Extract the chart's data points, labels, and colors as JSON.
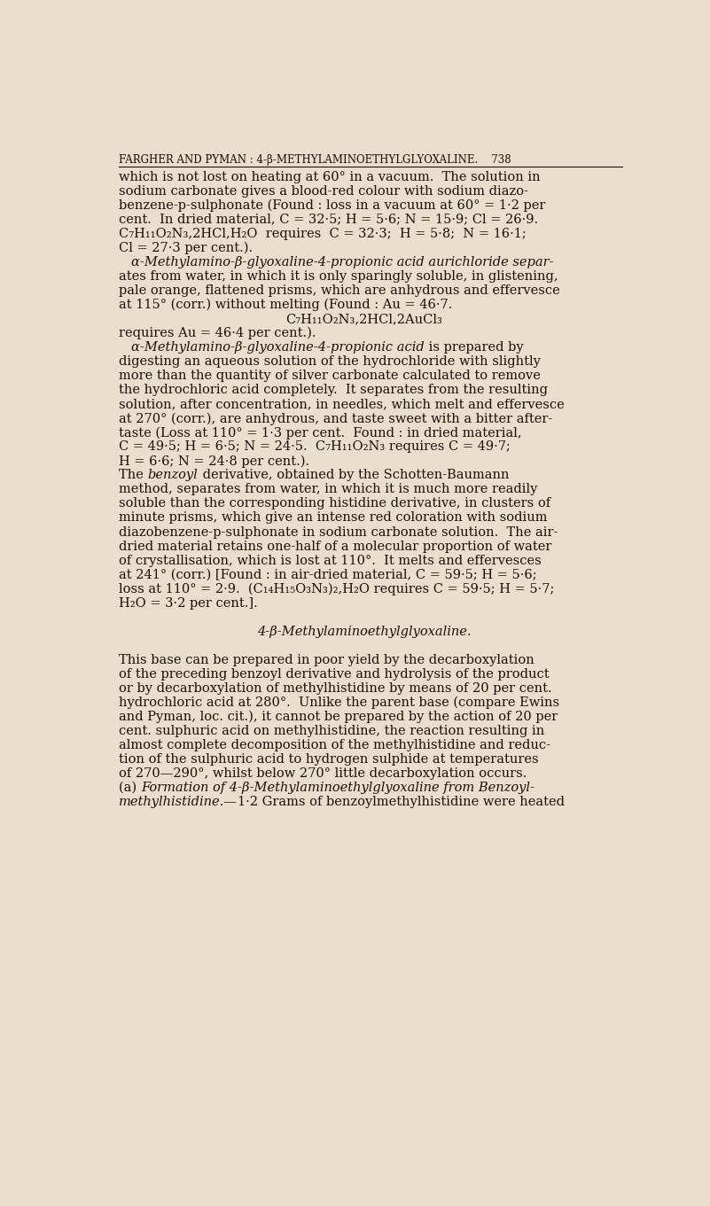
{
  "bg_color": "#e8e0cc",
  "text_color": "#1a1008",
  "page_width": 8.01,
  "page_height": 13.61,
  "dpi": 100,
  "header_text": "FARGHER AND PYMAN : 4-β-METHYLAMINOETHYLGLYOXALINE.    738",
  "body_lines": [
    {
      "text": "which is not lost on heating at 60° in a vacuum.  The solution in",
      "style": "normal",
      "indent": 0
    },
    {
      "text": "sodium carbonate gives a blood-red colour with sodium diazo-",
      "style": "normal",
      "indent": 0
    },
    {
      "text": "benzene-p-sulphonate (Found : loss in a vacuum at 60° = 1·2 per",
      "style": "normal",
      "indent": 0
    },
    {
      "text": "cent.  In dried material, C = 32·5; H = 5·6; N = 15·9; Cl = 26·9.",
      "style": "normal",
      "indent": 0
    },
    {
      "text": "C₇H₁₁O₂N₃,2HCl,H₂O  requires  C = 32·3;  H = 5·8;  N = 16·1;",
      "style": "normal",
      "indent": 0
    },
    {
      "text": "Cl = 27·3 per cent.).",
      "style": "normal",
      "indent": 0
    },
    {
      "text": "α-Methylamino-β-glyoxaline-4-propionic acid aurichloride separ-",
      "style": "italic",
      "indent": 1
    },
    {
      "text": "ates from water, in which it is only sparingly soluble, in glistening,",
      "style": "normal",
      "indent": 0
    },
    {
      "text": "pale orange, flattened prisms, which are anhydrous and effervesce",
      "style": "normal",
      "indent": 0
    },
    {
      "text": "at 115° (corr.) without melting (Found : Au = 46·7.",
      "style": "normal",
      "indent": 0
    },
    {
      "text": "C₇H₁₁O₂N₃,2HCl,2AuCl₃",
      "style": "normal",
      "indent": 2
    },
    {
      "text": "requires Au = 46·4 per cent.).",
      "style": "normal",
      "indent": 0
    },
    {
      "text": "α-Methylamino-β-glyoxaline-4-propionic acid is prepared by",
      "style": "italic_partial",
      "indent": 1
    },
    {
      "text": "digesting an aqueous solution of the hydrochloride with slightly",
      "style": "normal",
      "indent": 0
    },
    {
      "text": "more than the quantity of silver carbonate calculated to remove",
      "style": "normal",
      "indent": 0
    },
    {
      "text": "the hydrochloric acid completely.  It separates from the resulting",
      "style": "normal",
      "indent": 0
    },
    {
      "text": "solution, after concentration, in needles, which melt and effervesce",
      "style": "normal",
      "indent": 0
    },
    {
      "text": "at 270° (corr.), are anhydrous, and taste sweet with a bitter after-",
      "style": "normal",
      "indent": 0
    },
    {
      "text": "taste (Loss at 110° = 1·3 per cent.  Found : in dried material,",
      "style": "normal",
      "indent": 0
    },
    {
      "text": "C = 49·5; H = 6·5; N = 24·5.  C₇H₁₁O₂N₃ requires C = 49·7;",
      "style": "normal",
      "indent": 0
    },
    {
      "text": "H = 6·6; N = 24·8 per cent.).",
      "style": "normal",
      "indent": 0
    },
    {
      "text": "The benzoyl derivative, obtained by the Schotten-Baumann",
      "style": "normal_the",
      "indent": 0
    },
    {
      "text": "method, separates from water, in which it is much more readily",
      "style": "normal",
      "indent": 0
    },
    {
      "text": "soluble than the corresponding histidine derivative, in clusters of",
      "style": "normal",
      "indent": 0
    },
    {
      "text": "minute prisms, which give an intense red coloration with sodium",
      "style": "normal",
      "indent": 0
    },
    {
      "text": "diazobenzene-p-sulphonate in sodium carbonate solution.  The air-",
      "style": "normal",
      "indent": 0
    },
    {
      "text": "dried material retains one-half of a molecular proportion of water",
      "style": "normal",
      "indent": 0
    },
    {
      "text": "of crystallisation, which is lost at 110°.  It melts and effervesces",
      "style": "normal",
      "indent": 0
    },
    {
      "text": "at 241° (corr.) [Found : in air-dried material, C = 59·5; H = 5·6;",
      "style": "normal",
      "indent": 0
    },
    {
      "text": "loss at 110° = 2·9.  (C₁₄H₁₅O₃N₃)₂,H₂O requires C = 59·5; H = 5·7;",
      "style": "normal",
      "indent": 0
    },
    {
      "text": "H₂O = 3·2 per cent.].",
      "style": "normal",
      "indent": 0
    },
    {
      "text": "",
      "style": "normal",
      "indent": 0
    },
    {
      "text": "4-β-Methylaminoethylglyoxaline.",
      "style": "section_italic",
      "indent": 0
    },
    {
      "text": "",
      "style": "normal",
      "indent": 0
    },
    {
      "text": "This base can be prepared in poor yield by the decarboxylation",
      "style": "normal",
      "indent": 0
    },
    {
      "text": "of the preceding benzoyl derivative and hydrolysis of the product",
      "style": "normal",
      "indent": 0
    },
    {
      "text": "or by decarboxylation of methylhistidine by means of 20 per cent.",
      "style": "normal",
      "indent": 0
    },
    {
      "text": "hydrochloric acid at 280°.  Unlike the parent base (compare Ewins",
      "style": "normal",
      "indent": 0
    },
    {
      "text": "and Pyman, loc. cit.), it cannot be prepared by the action of 20 per",
      "style": "normal",
      "indent": 0
    },
    {
      "text": "cent. sulphuric acid on methylhistidine, the reaction resulting in",
      "style": "normal",
      "indent": 0
    },
    {
      "text": "almost complete decomposition of the methylhistidine and reduc-",
      "style": "normal",
      "indent": 0
    },
    {
      "text": "tion of the sulphuric acid to hydrogen sulphide at temperatures",
      "style": "normal",
      "indent": 0
    },
    {
      "text": "of 270—290°, whilst below 270° little decarboxylation occurs.",
      "style": "normal",
      "indent": 0
    },
    {
      "text": "(a) Formation of 4-β-Methylaminoethylglyoxaline from Benzoyl-",
      "style": "italic_partial2",
      "indent": 0
    },
    {
      "text": "methylhistidine.—1·2 Grams of benzoylmethylhistidine were heated",
      "style": "italic_partial3",
      "indent": 0
    }
  ]
}
